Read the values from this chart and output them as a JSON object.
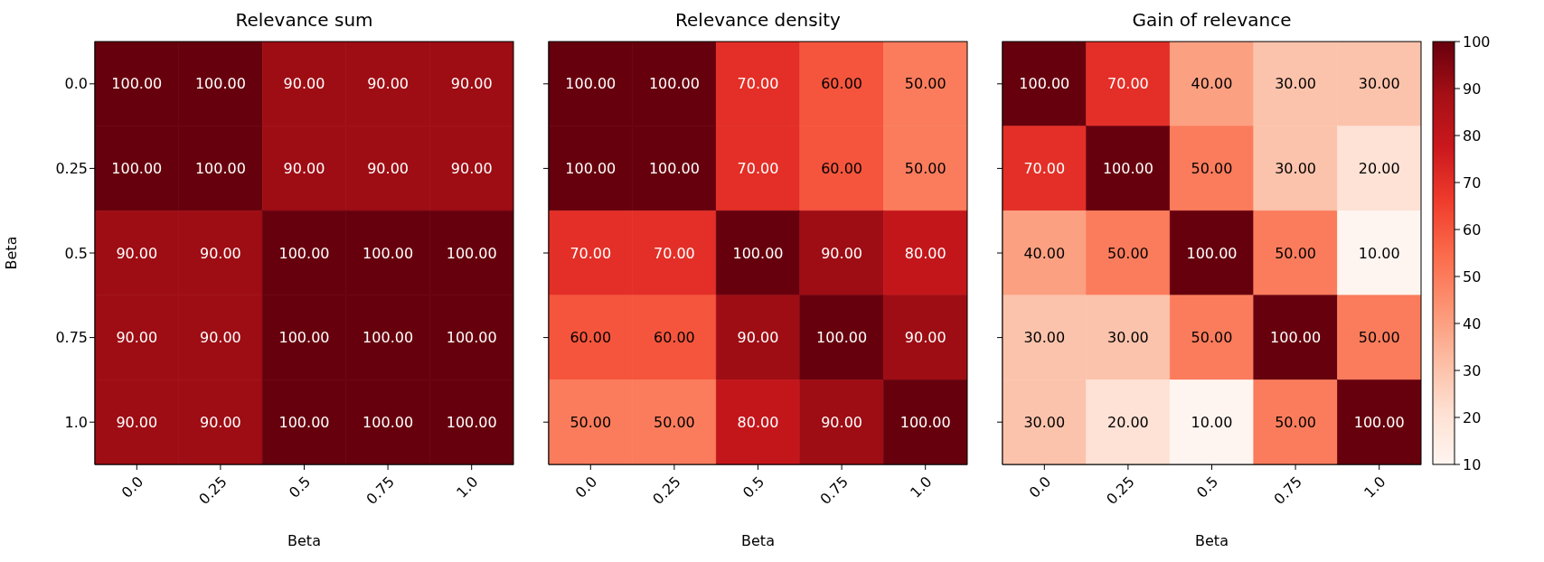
{
  "chart_data": [
    {
      "type": "heatmap",
      "title": "Relevance sum",
      "xlabel": "Beta",
      "ylabel": "Beta",
      "categories": [
        "0.0",
        "0.25",
        "0.5",
        "0.75",
        "1.0"
      ],
      "y_categories": [
        "0.0",
        "0.25",
        "0.5",
        "0.75",
        "1.0"
      ],
      "cells": [
        [
          100,
          100,
          90,
          90,
          90
        ],
        [
          100,
          100,
          90,
          90,
          90
        ],
        [
          90,
          90,
          100,
          100,
          100
        ],
        [
          90,
          90,
          100,
          100,
          100
        ],
        [
          90,
          90,
          100,
          100,
          100
        ]
      ],
      "cell_labels": [
        [
          "100.00",
          "100.00",
          "90.00",
          "90.00",
          "90.00"
        ],
        [
          "100.00",
          "100.00",
          "90.00",
          "90.00",
          "90.00"
        ],
        [
          "90.00",
          "90.00",
          "100.00",
          "100.00",
          "100.00"
        ],
        [
          "90.00",
          "90.00",
          "100.00",
          "100.00",
          "100.00"
        ],
        [
          "90.00",
          "90.00",
          "100.00",
          "100.00",
          "100.00"
        ]
      ]
    },
    {
      "type": "heatmap",
      "title": "Relevance density",
      "xlabel": "Beta",
      "tick_labels": "x",
      "categories": [
        "0.0",
        "0.25",
        "0.5",
        "0.75",
        "1.0"
      ],
      "y_categories": [
        "0.0",
        "0.25",
        "0.5",
        "0.75",
        "1.0"
      ],
      "cells": [
        [
          100,
          100,
          70,
          60,
          50
        ],
        [
          100,
          100,
          70,
          60,
          50
        ],
        [
          70,
          70,
          100,
          90,
          80
        ],
        [
          60,
          60,
          90,
          100,
          90
        ],
        [
          50,
          50,
          80,
          90,
          100
        ]
      ],
      "cell_labels": [
        [
          "100.00",
          "100.00",
          "70.00",
          "60.00",
          "50.00"
        ],
        [
          "100.00",
          "100.00",
          "70.00",
          "60.00",
          "50.00"
        ],
        [
          "70.00",
          "70.00",
          "100.00",
          "90.00",
          "80.00"
        ],
        [
          "60.00",
          "60.00",
          "90.00",
          "100.00",
          "90.00"
        ],
        [
          "50.00",
          "50.00",
          "80.00",
          "90.00",
          "100.00"
        ]
      ]
    },
    {
      "type": "heatmap",
      "title": "Gain of relevance",
      "xlabel": "Beta",
      "tick_labels": "x",
      "categories": [
        "0.0",
        "0.25",
        "0.5",
        "0.75",
        "1.0"
      ],
      "y_categories": [
        "0.0",
        "0.25",
        "0.5",
        "0.75",
        "1.0"
      ],
      "cells": [
        [
          100,
          70,
          40,
          30,
          30
        ],
        [
          70,
          100,
          50,
          30,
          20
        ],
        [
          40,
          50,
          100,
          50,
          10
        ],
        [
          30,
          30,
          50,
          100,
          50
        ],
        [
          30,
          20,
          10,
          50,
          100
        ]
      ],
      "cell_labels": [
        [
          "100.00",
          "70.00",
          "40.00",
          "30.00",
          "30.00"
        ],
        [
          "70.00",
          "100.00",
          "50.00",
          "30.00",
          "20.00"
        ],
        [
          "40.00",
          "50.00",
          "100.00",
          "50.00",
          "10.00"
        ],
        [
          "30.00",
          "30.00",
          "50.00",
          "100.00",
          "50.00"
        ],
        [
          "30.00",
          "20.00",
          "10.00",
          "50.00",
          "100.00"
        ]
      ],
      "clim": [
        10,
        100
      ],
      "cticks": [
        10,
        20,
        30,
        40,
        50,
        60,
        70,
        80,
        90,
        100
      ]
    }
  ]
}
